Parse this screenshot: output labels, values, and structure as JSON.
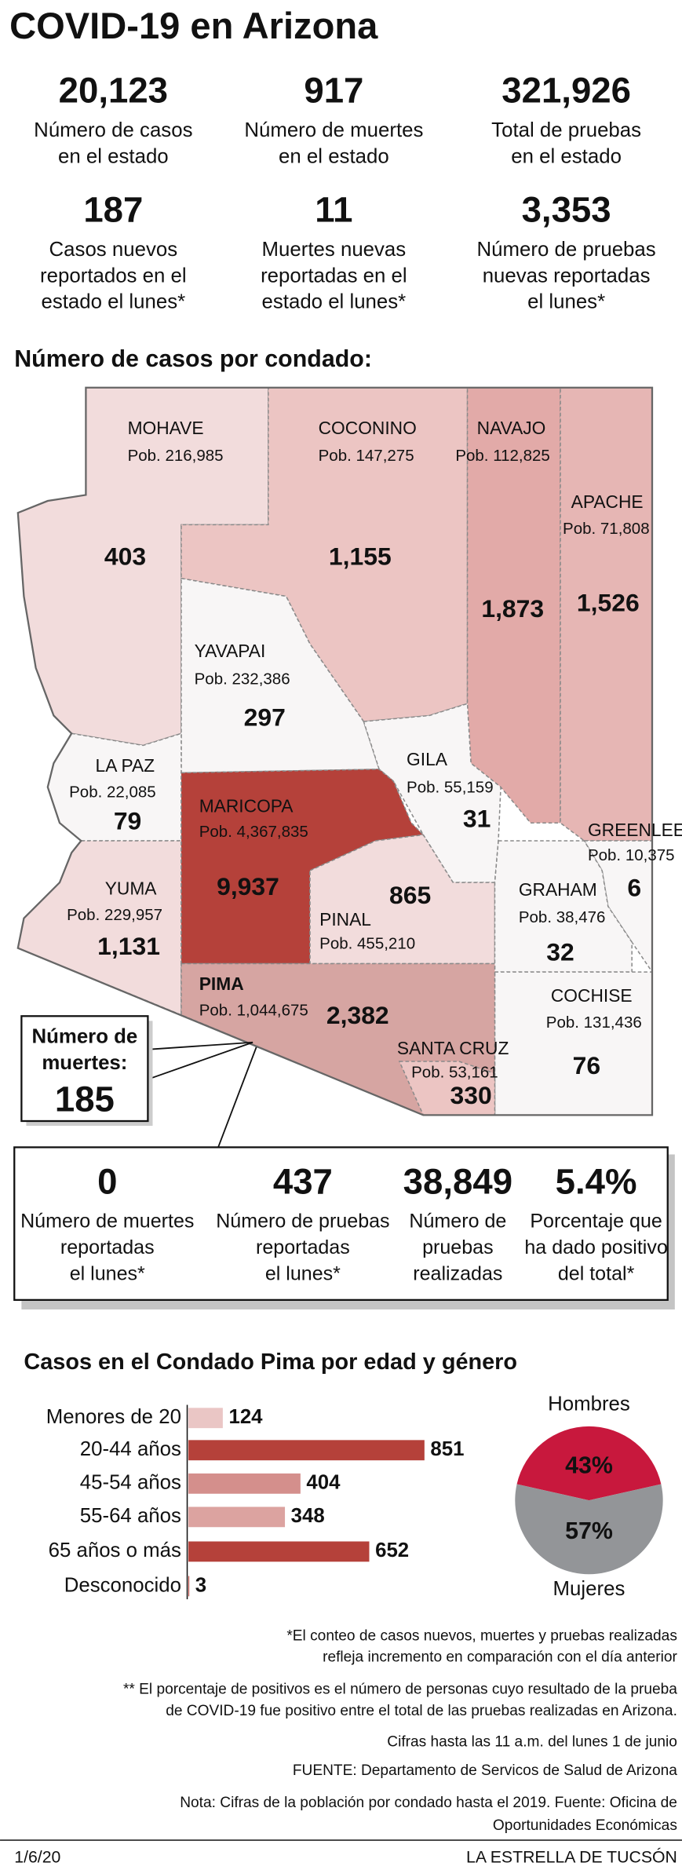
{
  "header": {
    "title": "COVID-19 en Arizona"
  },
  "state_stats": [
    {
      "value": "20,123",
      "label": [
        "Número de casos",
        "en el estado"
      ]
    },
    {
      "value": "917",
      "label": [
        "Número de muertes",
        "en el estado"
      ]
    },
    {
      "value": "321,926",
      "label": [
        "Total de pruebas",
        "en el estado"
      ]
    },
    {
      "value": "187",
      "label": [
        "Casos nuevos",
        "reportados en el",
        "estado el lunes*"
      ]
    },
    {
      "value": "11",
      "label": [
        "Muertes nuevas",
        "reportadas en el",
        "estado el lunes*"
      ]
    },
    {
      "value": "3,353",
      "label": [
        "Número de pruebas",
        "nuevas reportadas",
        "el lunes*"
      ]
    }
  ],
  "map": {
    "title": "Número de casos por condado:",
    "counties": [
      {
        "name": "MOHAVE",
        "population": "Pob. 216,985",
        "cases": "403"
      },
      {
        "name": "COCONINO",
        "population": "Pob. 147,275",
        "cases": "1,155"
      },
      {
        "name": "NAVAJO",
        "population": "Pob. 112,825",
        "cases": "1,873"
      },
      {
        "name": "APACHE",
        "population": "Pob. 71,808",
        "cases": "1,526"
      },
      {
        "name": "YAVAPAI",
        "population": "Pob. 232,386",
        "cases": "297"
      },
      {
        "name": "LA PAZ",
        "population": "Pob. 22,085",
        "cases": "79"
      },
      {
        "name": "GILA",
        "population": "Pob. 55,159",
        "cases": "31"
      },
      {
        "name": "MARICOPA",
        "population": "Pob. 4,367,835",
        "cases": "9,937"
      },
      {
        "name": "GREENLEE",
        "population": "Pob. 10,375",
        "cases": "6"
      },
      {
        "name": "YUMA",
        "population": "Pob. 229,957",
        "cases": "1,131"
      },
      {
        "name": "GRAHAM",
        "population": "Pob. 38,476",
        "cases": "32"
      },
      {
        "name": "PINAL",
        "population": "Pob. 455,210",
        "cases": "865"
      },
      {
        "name": "PIMA",
        "population": "Pob. 1,044,675",
        "cases": "2,382"
      },
      {
        "name": "COCHISE",
        "population": "Pob. 131,436",
        "cases": "76"
      },
      {
        "name": "SANTA CRUZ",
        "population": "Pob. 53,161",
        "cases": "330"
      }
    ],
    "deaths_callout": {
      "label": [
        "Número de",
        "muertes:"
      ],
      "value": "185"
    }
  },
  "pima_stats": [
    {
      "value": "0",
      "label": [
        "Número de muertes",
        "reportadas",
        "el lunes*"
      ]
    },
    {
      "value": "437",
      "label": [
        "Número de pruebas",
        "reportadas",
        "el lunes*"
      ]
    },
    {
      "value": "38,849",
      "label": [
        "Número de",
        "pruebas",
        "realizadas"
      ]
    },
    {
      "value": "5.4%",
      "label": [
        "Porcentaje que",
        "ha dado positivo",
        "del total*"
      ]
    }
  ],
  "chart_data": [
    {
      "type": "bar",
      "title": "Casos en el Condado Pima por edad y género",
      "categories": [
        "Menores de 20",
        "20-44 años",
        "45-54 años",
        "55-64 años",
        "65 años o más",
        "Desconocido"
      ],
      "values": [
        124,
        851,
        404,
        348,
        652,
        3
      ],
      "colors": [
        "#eac6c5",
        "#b5413a",
        "#d48f8c",
        "#dca3a0",
        "#b5413a",
        "#b5413a"
      ]
    },
    {
      "type": "pie",
      "categories": [
        "Hombres",
        "Mujeres"
      ],
      "values": [
        43,
        57
      ],
      "value_labels": [
        "43%",
        "57%"
      ],
      "colors": [
        "#c8183d",
        "#939598"
      ]
    }
  ],
  "notes": [
    "*El conteo de casos nuevos, muertes y pruebas realizadas",
    "refleja incremento en comparación con el día anterior",
    "** El porcentaje de positivos es el número de personas cuyo resultado de la prueba",
    "de COVID-19 fue positivo entre el total de las pruebas realizadas en Arizona.",
    "Cifras hasta las 11 a.m. del lunes 1 de junio",
    "FUENTE: Departamento de Servicos de Salud de Arizona",
    "Nota: Cifras de la población por condado hasta el 2019. Fuente: Oficina de",
    "Oportunidades Económicas"
  ],
  "footer": {
    "date": "1/6/20",
    "publisher": "LA ESTRELLA DE TUCSÓN"
  }
}
